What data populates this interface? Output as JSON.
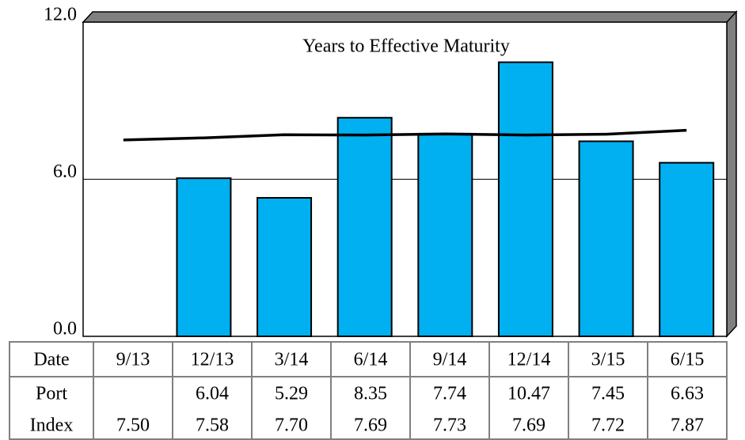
{
  "chart_data": {
    "type": "bar",
    "title": "Years to Effective Maturity",
    "x_label": "Date",
    "categories": [
      "9/13",
      "12/13",
      "3/14",
      "6/14",
      "9/14",
      "12/14",
      "3/15",
      "6/15"
    ],
    "series": [
      {
        "name": "Port",
        "type": "bar",
        "color": "#00b0f0",
        "values": [
          null,
          6.04,
          5.29,
          8.35,
          7.74,
          10.47,
          7.45,
          6.63
        ],
        "value_labels": [
          null,
          "6.04",
          "5.29",
          "8.35",
          "7.74",
          "10.47",
          "7.45",
          "6.63"
        ]
      },
      {
        "name": "Index",
        "type": "line",
        "color": "#000000",
        "values": [
          7.5,
          7.58,
          7.7,
          7.69,
          7.73,
          7.69,
          7.72,
          7.87
        ],
        "value_labels": [
          "7.50",
          "7.58",
          "7.70",
          "7.69",
          "7.73",
          "7.69",
          "7.72",
          "7.87"
        ]
      }
    ],
    "ylim": [
      0,
      12
    ],
    "yticks": [
      {
        "value": 0,
        "label": "0.0"
      },
      {
        "value": 6,
        "label": "6.0"
      },
      {
        "value": 12,
        "label": "12.0"
      }
    ],
    "grid": true
  }
}
